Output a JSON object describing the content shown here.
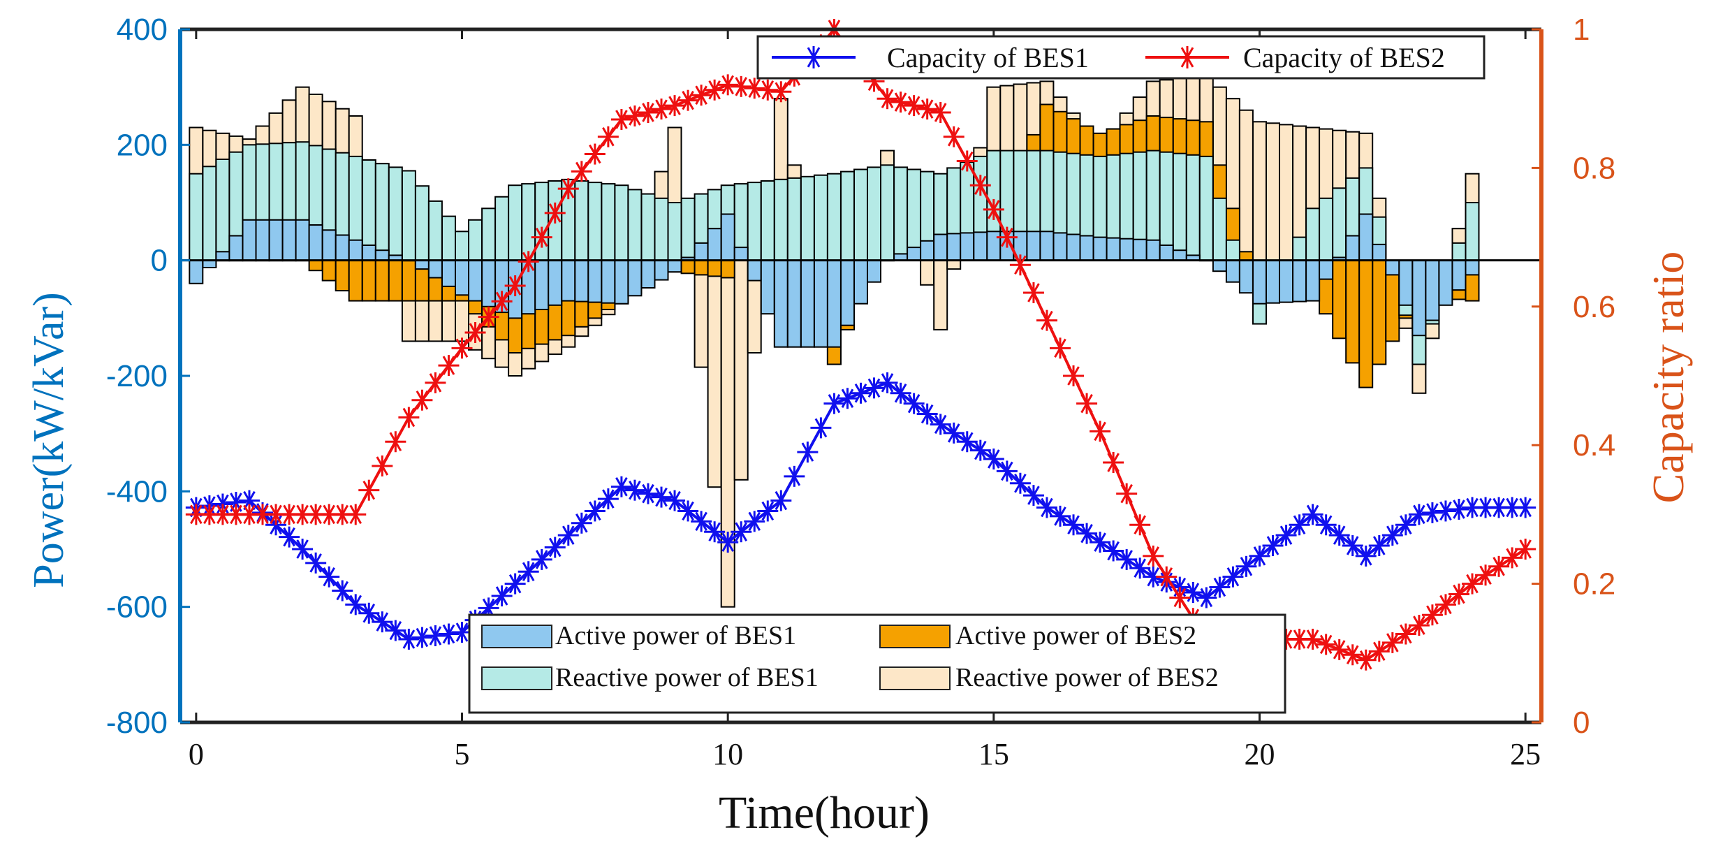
{
  "chart_data": {
    "type": "bar",
    "title": "",
    "xlabel": "Time(hour)",
    "ylabel_left": "Power(kW/kVar)",
    "ylabel_right": "Capacity ratio",
    "xlim": [
      -0.3,
      25.3
    ],
    "ylim_left": [
      -800,
      400
    ],
    "ylim_right": [
      0,
      1
    ],
    "xticks": [
      0,
      5,
      10,
      15,
      20,
      25
    ],
    "yticks_left": [
      -800,
      -600,
      -400,
      -200,
      0,
      200,
      400
    ],
    "yticks_right": [
      0,
      0.2,
      0.4,
      0.6,
      0.8,
      1
    ],
    "ytick_labels_left": [
      "-800",
      "-600",
      "-400",
      "-200",
      "0",
      "200",
      "400"
    ],
    "ytick_labels_right": [
      "0",
      "0.2",
      "0.4",
      "0.6",
      "0.8",
      "1"
    ],
    "bar_time_step": 0.25,
    "bar_series": [
      {
        "name": "Active power of BES1",
        "color": "#8fc8ef",
        "hours": [
          0,
          1,
          2,
          3,
          4,
          5,
          6,
          7,
          8,
          9,
          10,
          11,
          12,
          13,
          14,
          15,
          16,
          17,
          18,
          19,
          20,
          21,
          22,
          23,
          24
        ],
        "values": [
          -40,
          70,
          70,
          35,
          0,
          -60,
          -100,
          -70,
          -75,
          -20,
          80,
          -150,
          -150,
          0,
          45,
          50,
          50,
          40,
          35,
          0,
          -75,
          -70,
          80,
          -130,
          -25
        ]
      },
      {
        "name": "Reactive power of BES1",
        "color": "#b5eae6",
        "hours": [
          0,
          1,
          2,
          3,
          4,
          5,
          6,
          7,
          8,
          9,
          10,
          11,
          12,
          13,
          14,
          15,
          16,
          17,
          18,
          19,
          20,
          21,
          22,
          23,
          24
        ],
        "values": [
          150,
          200,
          205,
          180,
          155,
          50,
          130,
          140,
          130,
          100,
          130,
          140,
          150,
          165,
          150,
          190,
          190,
          180,
          190,
          180,
          -110,
          90,
          160,
          -180,
          100
        ]
      },
      {
        "name": "Active power of BES2",
        "color": "#f5a100",
        "hours": [
          0,
          1,
          2,
          3,
          4,
          5,
          6,
          7,
          8,
          9,
          10,
          11,
          12,
          13,
          14,
          15,
          16,
          17,
          18,
          19,
          20,
          21,
          22,
          23,
          24
        ],
        "values": [
          0,
          0,
          0,
          -70,
          -70,
          -70,
          -160,
          -130,
          -70,
          -20,
          -30,
          140,
          -180,
          60,
          60,
          60,
          270,
          220,
          250,
          240,
          -60,
          -50,
          -220,
          -60,
          -70
        ]
      },
      {
        "name": "Reactive power of BES2",
        "color": "#fde7c8",
        "hours": [
          0,
          1,
          2,
          3,
          4,
          5,
          6,
          7,
          8,
          9,
          10,
          11,
          12,
          13,
          14,
          15,
          16,
          17,
          18,
          19,
          20,
          21,
          22,
          23,
          24
        ],
        "values": [
          230,
          210,
          300,
          250,
          -140,
          -140,
          -200,
          -150,
          -75,
          230,
          -600,
          280,
          -180,
          190,
          -120,
          300,
          310,
          200,
          310,
          320,
          240,
          230,
          220,
          -230,
          150
        ]
      }
    ],
    "line_series": [
      {
        "name": "Capacity of BES1",
        "color": "#1010ee",
        "marker": "asterisk",
        "hours": [
          0,
          1,
          2,
          3,
          4,
          5,
          6,
          7,
          8,
          9,
          10,
          11,
          12,
          13,
          14,
          15,
          16,
          17,
          18,
          19,
          20,
          21,
          22,
          23,
          24,
          25
        ],
        "values": [
          0.31,
          0.32,
          0.25,
          0.17,
          0.12,
          0.13,
          0.2,
          0.27,
          0.34,
          0.32,
          0.26,
          0.32,
          0.46,
          0.49,
          0.43,
          0.38,
          0.31,
          0.26,
          0.21,
          0.18,
          0.24,
          0.3,
          0.24,
          0.3,
          0.31,
          0.31
        ]
      },
      {
        "name": "Capacity of BES2",
        "color": "#ee1010",
        "marker": "asterisk",
        "hours": [
          0,
          1,
          2,
          3,
          4,
          5,
          6,
          7,
          8,
          9,
          10,
          11,
          12,
          13,
          14,
          15,
          16,
          17,
          18,
          19,
          20,
          21,
          22,
          23,
          24,
          25
        ],
        "values": [
          0.3,
          0.3,
          0.3,
          0.3,
          0.44,
          0.54,
          0.63,
          0.77,
          0.87,
          0.89,
          0.92,
          0.91,
          1.0,
          0.9,
          0.88,
          0.74,
          0.58,
          0.42,
          0.24,
          0.12,
          0.12,
          0.12,
          0.09,
          0.14,
          0.2,
          0.25
        ]
      }
    ],
    "legend_top": {
      "position": "top",
      "entries": [
        "Capacity of BES1",
        "Capacity of BES2"
      ]
    },
    "legend_bottom": {
      "position": "bottom-center",
      "entries": [
        "Active power of BES1",
        "Active power of BES2",
        "Reactive power of BES1",
        "Reactive power of BES2"
      ]
    },
    "colors": {
      "left_axis": "#0072bd",
      "right_axis": "#d95319",
      "zero_line": "#000000"
    }
  }
}
